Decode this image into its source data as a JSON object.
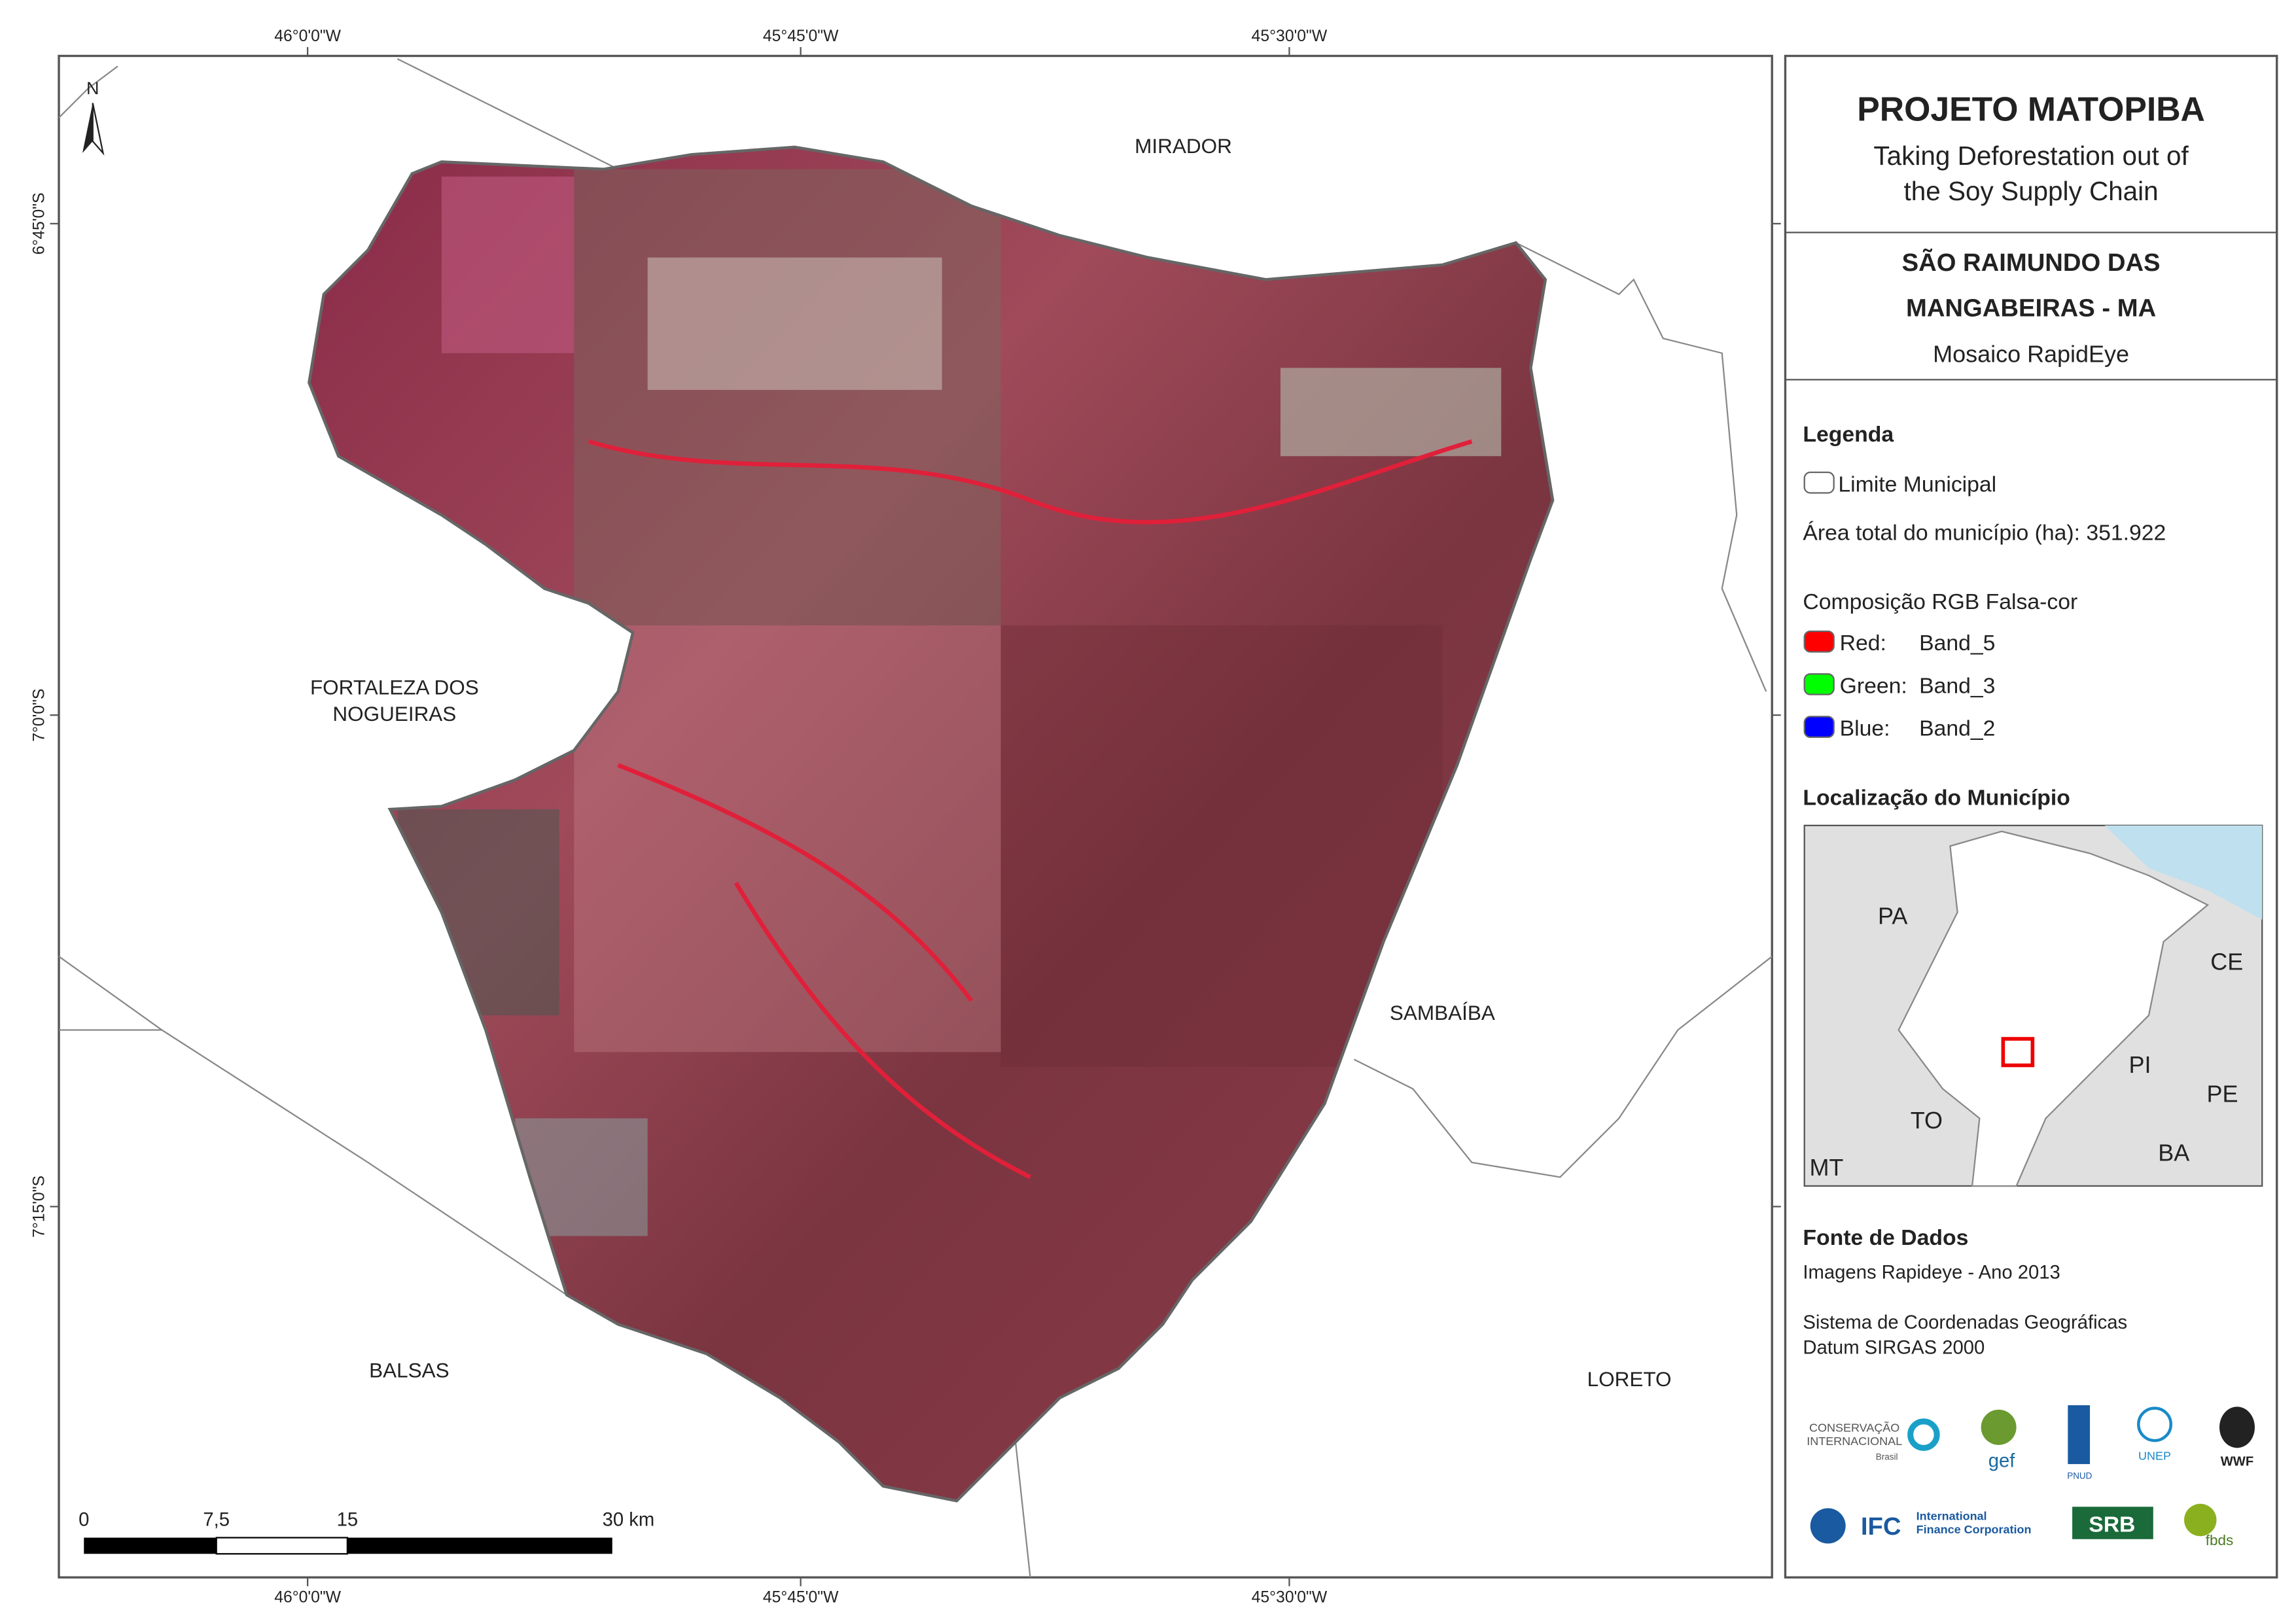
{
  "map": {
    "longitudes": [
      "46°0'0\"W",
      "45°45'0\"W",
      "45°30'0\"W"
    ],
    "latitudes": [
      "6°45'0\"S",
      "7°0'0\"S",
      "7°15'0\"S"
    ],
    "north_arrow": "N",
    "places": {
      "mirador": "MIRADOR",
      "fortaleza": [
        "FORTALEZA DOS",
        "NOGUEIRAS"
      ],
      "sambaiba": "SAMBAÍBA",
      "balsas": "BALSAS",
      "loreto": "LORETO"
    },
    "scale_bar": [
      "0",
      "7,5",
      "15",
      "30 km"
    ]
  },
  "panel": {
    "title": "PROJETO MATOPIBA",
    "subtitle": [
      "Taking Deforestation out of",
      "the Soy Supply Chain"
    ],
    "municipality": [
      "SÃO RAIMUNDO DAS",
      "MANGABEIRAS - MA"
    ],
    "mosaic": "Mosaico RapidEye",
    "legend": {
      "heading": "Legenda",
      "boundary": "Limite Municipal",
      "area": "Área total do município (ha): 351.922",
      "composition": "Composição RGB Falsa-cor",
      "bands": [
        {
          "label": "Red:",
          "band": "Band_5"
        },
        {
          "label": "Green:",
          "band": "Band_3"
        },
        {
          "label": "Blue:",
          "band": "Band_2"
        }
      ]
    },
    "location": {
      "heading": "Localização do Município",
      "states": [
        "PA",
        "CE",
        "PI",
        "PE",
        "TO",
        "BA",
        "MT"
      ]
    },
    "source": {
      "heading": "Fonte de Dados",
      "images": "Imagens Rapideye - Ano 2013",
      "system": "Sistema de Coordenadas Geográficas",
      "datum": "Datum SIRGAS 2000"
    },
    "logos": [
      "CONSERVAÇÃO",
      "INTERNACIONAL",
      "Brasil",
      "gef",
      "PNUD",
      "UNEP",
      "WWF",
      "IFC",
      "International",
      "Finance Corporation",
      "SRB",
      "fbds"
    ]
  }
}
